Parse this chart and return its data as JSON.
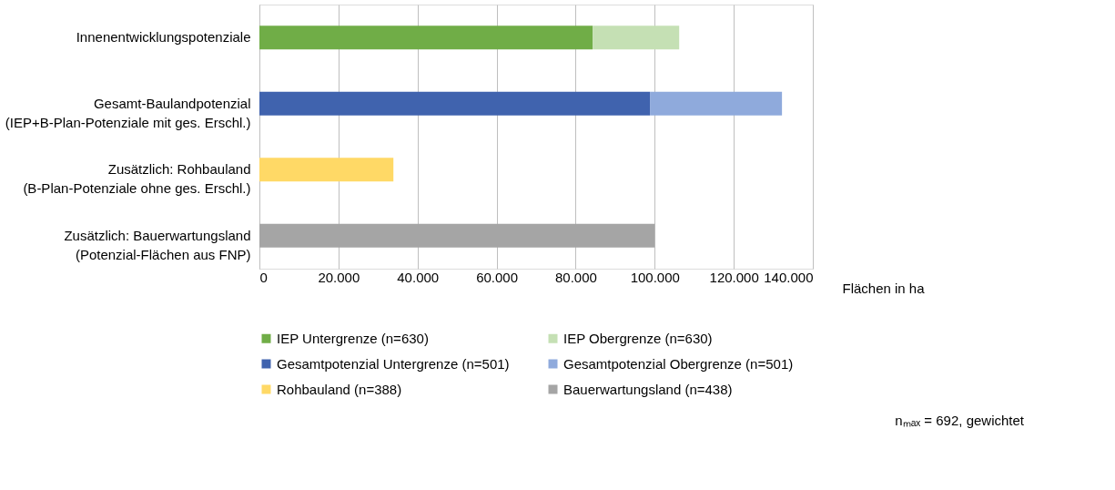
{
  "chart_data": {
    "type": "bar",
    "orientation": "horizontal",
    "stacked": true,
    "categories": [
      "Innenentwicklungspotenziale",
      "Gesamt-Baulandpotenzial\n(IEP+B-Plan-Potenziale mit ges. Erschl.)",
      "Zusätzlich: Rohbauland\n(B-Plan-Potenziale ohne ges. Erschl.)",
      "Zusätzlich: Bauerwartungsland\n(Potenzial-Flächen aus FNP)"
    ],
    "series": [
      {
        "name": "IEP Untergrenze (n=630)",
        "color": "#70ad47",
        "values": [
          84300,
          null,
          null,
          null
        ]
      },
      {
        "name": "IEP Obergrenze (n=630)",
        "color": "#c5e0b4",
        "values": [
          21900,
          null,
          null,
          null
        ]
      },
      {
        "name": "Gesamtpotenzial Untergrenze (n=501)",
        "color": "#4063ae",
        "values": [
          null,
          98800,
          null,
          null
        ]
      },
      {
        "name": "Gesamtpotenzial Obergrenze (n=501)",
        "color": "#8faadc",
        "values": [
          null,
          33400,
          null,
          null
        ]
      },
      {
        "name": "Rohbauland (n=388)",
        "color": "#ffd966",
        "values": [
          null,
          null,
          33900,
          null
        ]
      },
      {
        "name": "Bauerwartungsland (n=438)",
        "color": "#a5a5a5",
        "values": [
          null,
          null,
          null,
          100000
        ]
      }
    ],
    "xlim": [
      0,
      140000
    ],
    "xticks": [
      0,
      {
        "value": 20000,
        "label": "20.000"
      },
      {
        "value": 40000,
        "label": "40.000"
      },
      {
        "value": 60000,
        "label": "60.000"
      },
      {
        "value": 80000,
        "label": "80.000"
      },
      {
        "value": 100000,
        "label": "100.000"
      },
      {
        "value": 120000,
        "label": "120.000"
      },
      {
        "value": 140000,
        "label": "140.000"
      }
    ],
    "xlabel": "Flächen in ha",
    "grid": "x",
    "legend": "bottom",
    "annotations": [
      "nₘₐₓ = 692, gewichtet"
    ]
  }
}
